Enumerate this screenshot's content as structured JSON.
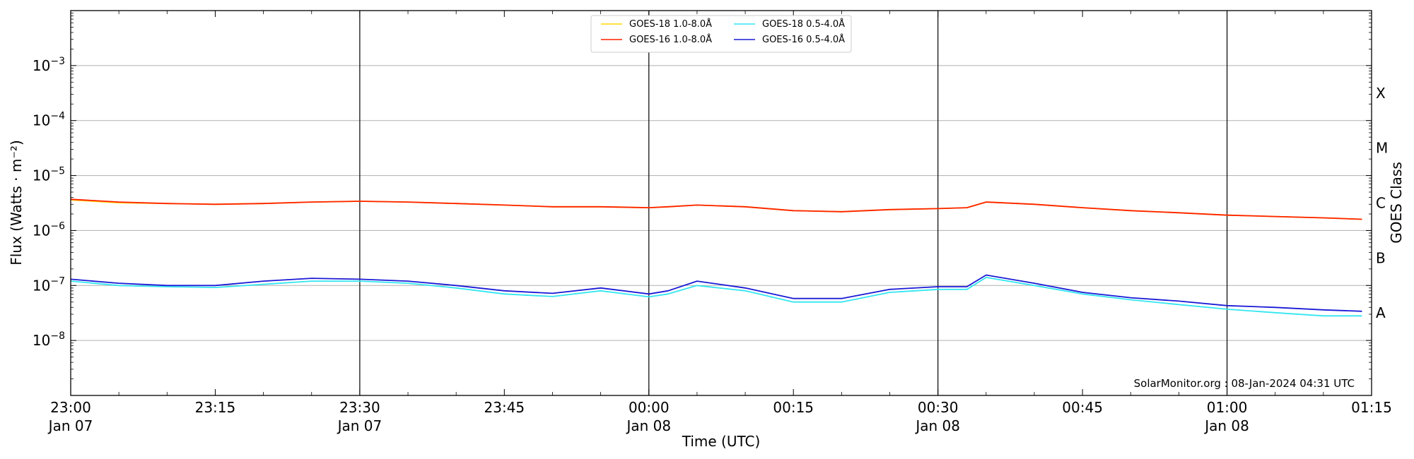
{
  "chart_data": {
    "type": "line",
    "xlabel": "Time (UTC)",
    "ylabel": "Flux (Watts · m⁻²)",
    "y2label": "GOES Class",
    "yscale": "log",
    "x_unit": "minutes",
    "xlim": [
      0,
      135
    ],
    "ylim": [
      1e-09,
      0.01
    ],
    "grid": "horizontal at decades",
    "legend_position": "top-center",
    "x_ticks": [
      {
        "x": 0,
        "line1": "23:00",
        "line2": "Jan 07"
      },
      {
        "x": 15,
        "line1": "23:15",
        "line2": ""
      },
      {
        "x": 30,
        "line1": "23:30",
        "line2": "Jan 07"
      },
      {
        "x": 45,
        "line1": "23:45",
        "line2": ""
      },
      {
        "x": 60,
        "line1": "00:00",
        "line2": "Jan 08"
      },
      {
        "x": 75,
        "line1": "00:15",
        "line2": ""
      },
      {
        "x": 90,
        "line1": "00:30",
        "line2": "Jan 08"
      },
      {
        "x": 105,
        "line1": "00:45",
        "line2": ""
      },
      {
        "x": 120,
        "line1": "01:00",
        "line2": "Jan 08"
      },
      {
        "x": 135,
        "line1": "01:15",
        "line2": ""
      }
    ],
    "vertical_lines_x": [
      30,
      60,
      90,
      120
    ],
    "y_ticks": [
      {
        "value": 0.001,
        "base": "10",
        "exp": "−3"
      },
      {
        "value": 0.0001,
        "base": "10",
        "exp": "−4"
      },
      {
        "value": 1e-05,
        "base": "10",
        "exp": "−5"
      },
      {
        "value": 1e-06,
        "base": "10",
        "exp": "−6"
      },
      {
        "value": 1e-07,
        "base": "10",
        "exp": "−7"
      },
      {
        "value": 1e-08,
        "base": "10",
        "exp": "−8"
      }
    ],
    "goes_classes": [
      {
        "label": "X",
        "value": 0.000316
      },
      {
        "label": "M",
        "value": 3.16e-05
      },
      {
        "label": "C",
        "value": 3.16e-06
      },
      {
        "label": "B",
        "value": 3.16e-07
      },
      {
        "label": "A",
        "value": 3.16e-08
      }
    ],
    "credit": "SolarMonitor.org : 08-Jan-2024 04:31 UTC",
    "x": [
      0,
      5,
      10,
      15,
      20,
      25,
      30,
      35,
      40,
      45,
      50,
      55,
      60,
      62,
      65,
      70,
      75,
      80,
      85,
      90,
      93,
      95,
      100,
      105,
      110,
      115,
      120,
      125,
      130,
      134
    ],
    "series": [
      {
        "name": "GOES-18 1.0-8.0Å",
        "color": "#ffd700",
        "values": [
          3.6e-06,
          3.2e-06,
          3.1e-06,
          3e-06,
          3.1e-06,
          3.3e-06,
          3.4e-06,
          3.3e-06,
          3.1e-06,
          2.9e-06,
          2.7e-06,
          2.7e-06,
          2.6e-06,
          2.7e-06,
          2.9e-06,
          2.7e-06,
          2.3e-06,
          2.2e-06,
          2.4e-06,
          2.5e-06,
          2.6e-06,
          3.3e-06,
          3e-06,
          2.6e-06,
          2.3e-06,
          2.1e-06,
          1.9e-06,
          1.8e-06,
          1.7e-06,
          1.6e-06
        ]
      },
      {
        "name": "GOES-16 1.0-8.0Å",
        "color": "#ff2200",
        "values": [
          3.7e-06,
          3.3e-06,
          3.1e-06,
          3e-06,
          3.1e-06,
          3.3e-06,
          3.4e-06,
          3.3e-06,
          3.1e-06,
          2.9e-06,
          2.7e-06,
          2.7e-06,
          2.6e-06,
          2.7e-06,
          2.9e-06,
          2.7e-06,
          2.3e-06,
          2.2e-06,
          2.4e-06,
          2.5e-06,
          2.6e-06,
          3.3e-06,
          3e-06,
          2.6e-06,
          2.3e-06,
          2.1e-06,
          1.9e-06,
          1.8e-06,
          1.7e-06,
          1.6e-06
        ]
      },
      {
        "name": "GOES-18 0.5-4.0Å",
        "color": "#33e6f0",
        "values": [
          1.2e-07,
          1e-07,
          9.5e-08,
          9.2e-08,
          1.05e-07,
          1.2e-07,
          1.2e-07,
          1.1e-07,
          9e-08,
          7e-08,
          6.3e-08,
          8e-08,
          6.2e-08,
          7e-08,
          1e-07,
          8e-08,
          5e-08,
          5e-08,
          7.5e-08,
          8.5e-08,
          8.5e-08,
          1.4e-07,
          1e-07,
          7e-08,
          5.5e-08,
          4.5e-08,
          3.7e-08,
          3.2e-08,
          2.8e-08,
          2.8e-08
        ]
      },
      {
        "name": "GOES-16 0.5-4.0Å",
        "color": "#1a1ad6",
        "values": [
          1.3e-07,
          1.1e-07,
          1e-07,
          1e-07,
          1.2e-07,
          1.35e-07,
          1.3e-07,
          1.2e-07,
          1e-07,
          8e-08,
          7.2e-08,
          9e-08,
          7e-08,
          8e-08,
          1.2e-07,
          9e-08,
          5.8e-08,
          5.8e-08,
          8.5e-08,
          9.5e-08,
          9.5e-08,
          1.55e-07,
          1.1e-07,
          7.5e-08,
          6e-08,
          5.2e-08,
          4.3e-08,
          4e-08,
          3.6e-08,
          3.4e-08
        ]
      }
    ]
  }
}
